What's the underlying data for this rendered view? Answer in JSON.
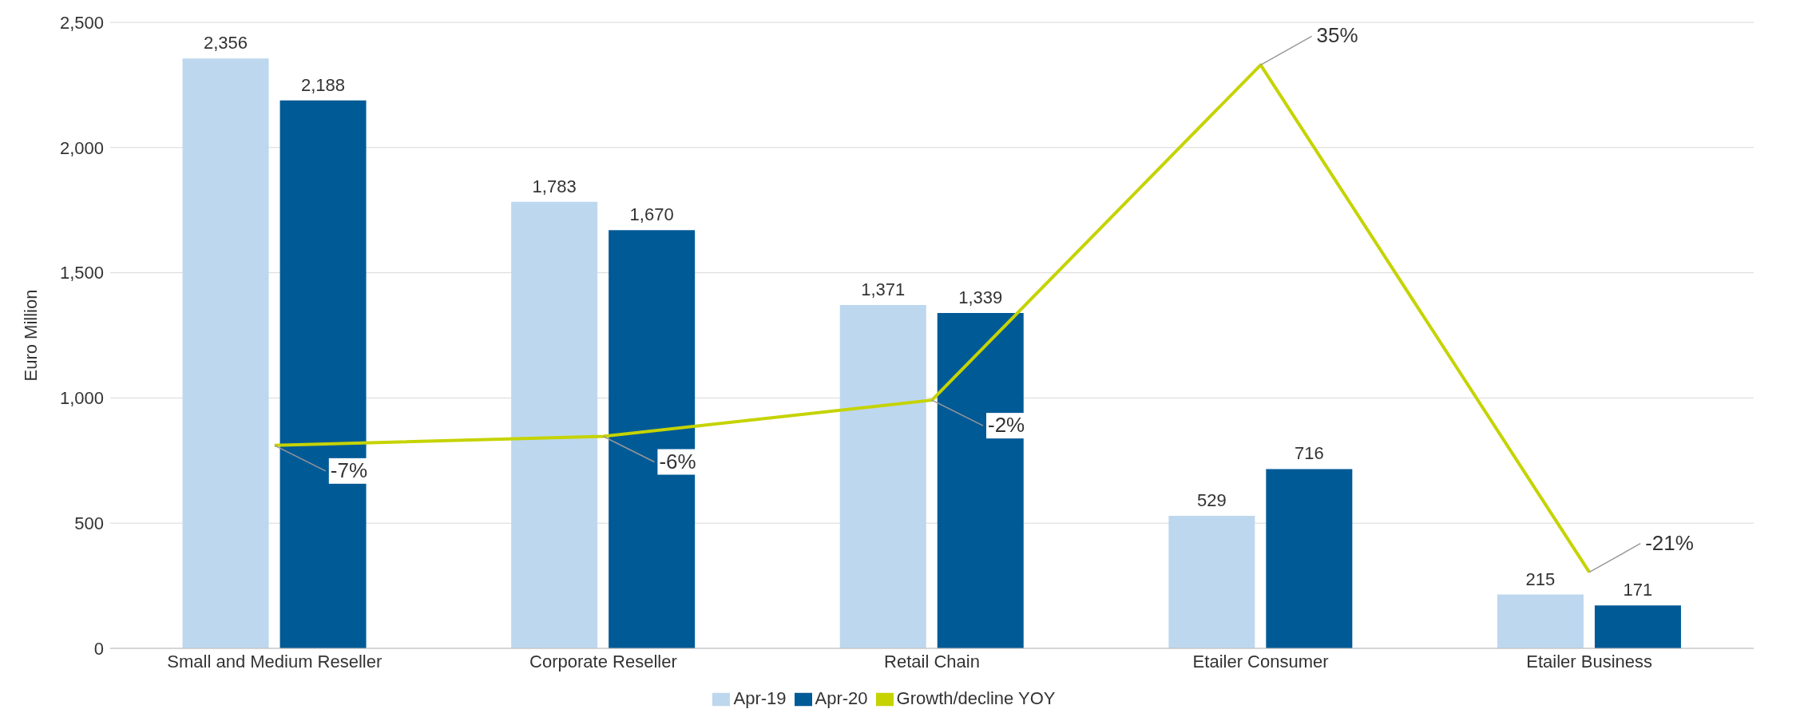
{
  "chart_data": {
    "type": "bar",
    "ylabel": "Euro Million",
    "categories": [
      "Small and Medium Reseller",
      "Corporate Reseller",
      "Retail Chain",
      "Etailer Consumer",
      "Etailer Business"
    ],
    "series": [
      {
        "name": "Apr-19",
        "color": "#bdd7ee",
        "values": [
          2356,
          1783,
          1371,
          529,
          215
        ],
        "value_labels": [
          "2,356",
          "1,783",
          "1,371",
          "529",
          "215"
        ]
      },
      {
        "name": "Apr-20",
        "color": "#005a96",
        "values": [
          2188,
          1670,
          1339,
          716,
          171
        ],
        "value_labels": [
          "2,188",
          "1,670",
          "1,339",
          "716",
          "171"
        ]
      },
      {
        "name": "Growth/decline YOY",
        "type": "line",
        "axis": "y2",
        "color": "#c5d300",
        "values": [
          -7,
          -6,
          -2,
          35,
          -21
        ],
        "value_labels": [
          "-7%",
          "-6%",
          "-2%",
          "35%",
          "-21%"
        ]
      }
    ],
    "ylim": [
      0,
      2500
    ],
    "yticks": [
      {
        "value": 0,
        "label": "0"
      },
      {
        "value": 500,
        "label": "500"
      },
      {
        "value": 1000,
        "label": "1,000"
      },
      {
        "value": 1500,
        "label": "1,500"
      },
      {
        "value": 2000,
        "label": "2,000"
      },
      {
        "value": 2500,
        "label": "2,500"
      }
    ],
    "y2lim": [
      -29.4,
      39.7
    ],
    "grid": "y",
    "legend": "bottom",
    "marker": "none"
  }
}
